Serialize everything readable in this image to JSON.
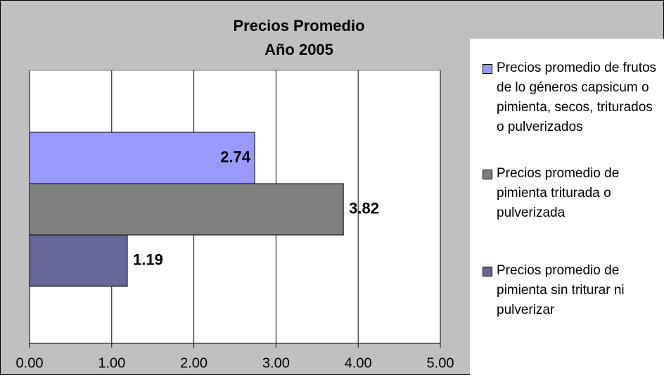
{
  "chart_data": {
    "type": "bar",
    "orientation": "horizontal",
    "title": [
      "Precios Promedio",
      "Año 2005"
    ],
    "series": [
      {
        "name": "Precios promedio de frutos de lo géneros capsicum o pimienta, secos, triturados o pulverizados",
        "color": "#9999ff",
        "values": [
          2.74
        ]
      },
      {
        "name": "Precios promedio de pimienta triturada o pulverizada",
        "color": "#808080",
        "values": [
          3.82
        ]
      },
      {
        "name": "Precios promedio de pimienta sin triturar ni pulverizar",
        "color": "#666699",
        "values": [
          1.19
        ]
      }
    ],
    "xlim": [
      0,
      5
    ],
    "xticks": [
      {
        "value": 0,
        "label": "0.00"
      },
      {
        "value": 1,
        "label": "1.00"
      },
      {
        "value": 2,
        "label": "2.00"
      },
      {
        "value": 3,
        "label": "3.00"
      },
      {
        "value": 4,
        "label": "4.00"
      },
      {
        "value": 5,
        "label": "5.00"
      }
    ],
    "grid": true,
    "legend": "right"
  }
}
